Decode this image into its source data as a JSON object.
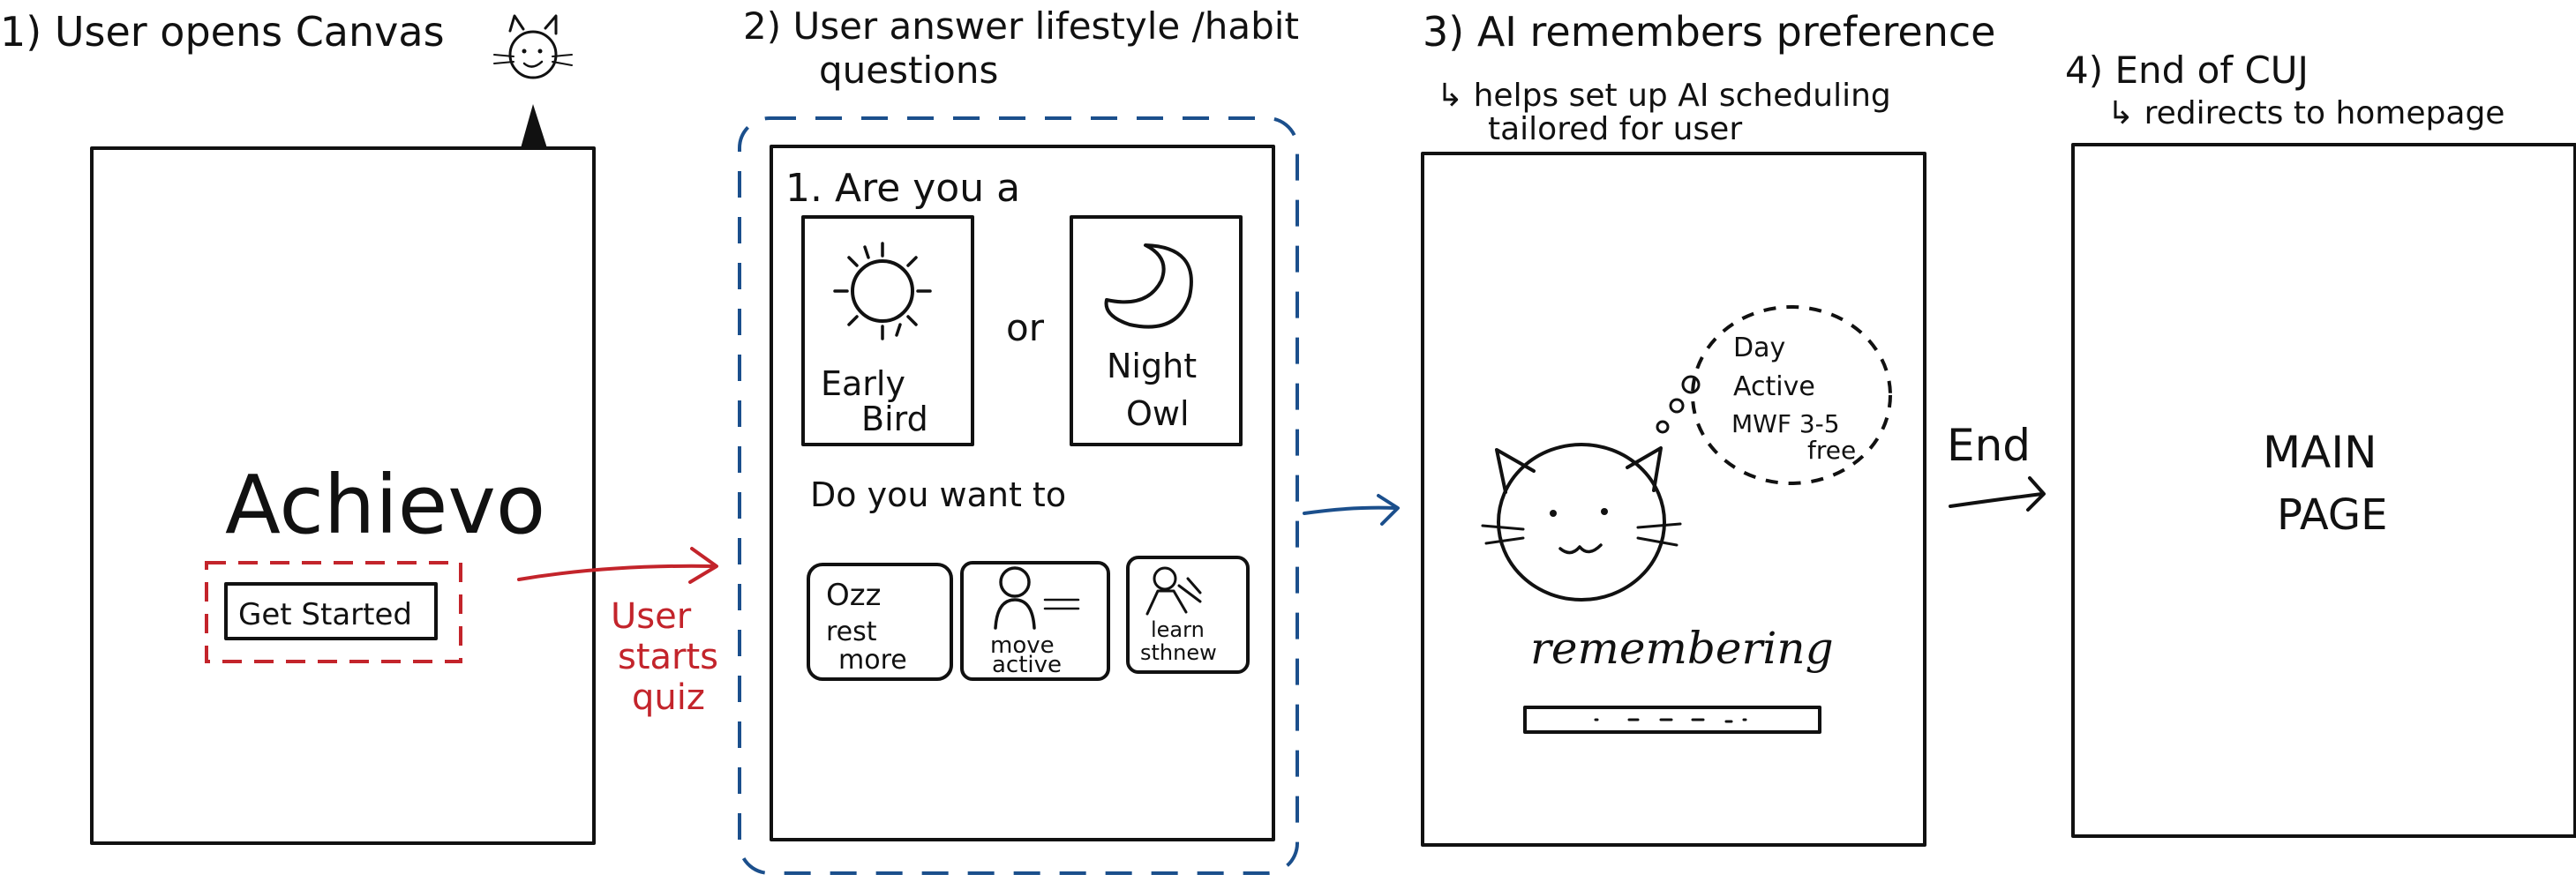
{
  "steps": [
    {
      "heading": "1) User opens Canvas"
    },
    {
      "heading_line1": "2) User answer lifestyle /habit",
      "heading_line2": "questions"
    },
    {
      "heading": "3) AI remembers preference",
      "subnote_line1": "↳ helps set up AI scheduling",
      "subnote_line2": "tailored for user"
    },
    {
      "heading": "4) End of CUJ",
      "subnote": "↳ redirects to homepage"
    }
  ],
  "screen1": {
    "app_name": "Achievo",
    "start_button": "Get Started"
  },
  "transition1": {
    "label_line1": "User",
    "label_line2": "starts",
    "label_line3": "quiz"
  },
  "screen2": {
    "question1": "1.  Are you a",
    "option_early": {
      "line1": "Early",
      "line2": "Bird"
    },
    "or": "or",
    "option_night": {
      "line1": "Night",
      "line2": "Owl"
    },
    "question2": "Do you want to",
    "choices": [
      {
        "line1": "rest",
        "line2": "more",
        "glyph": "Ozz"
      },
      {
        "line1": "move",
        "line2": "active",
        "glyph": ""
      },
      {
        "line1": "learn",
        "line2": "sthnew",
        "glyph": ""
      }
    ]
  },
  "screen3": {
    "thought": {
      "line1": "Day",
      "line2": "Active",
      "line3": "MWF 3-5",
      "line4": "free"
    },
    "status": "remembering"
  },
  "transition3": {
    "label": "End"
  },
  "screen4": {
    "line1": "MAIN",
    "line2": "PAGE"
  },
  "colors": {
    "ink": "#111111",
    "accent_red": "#c3242b",
    "accent_blue": "#1b4f8c"
  }
}
